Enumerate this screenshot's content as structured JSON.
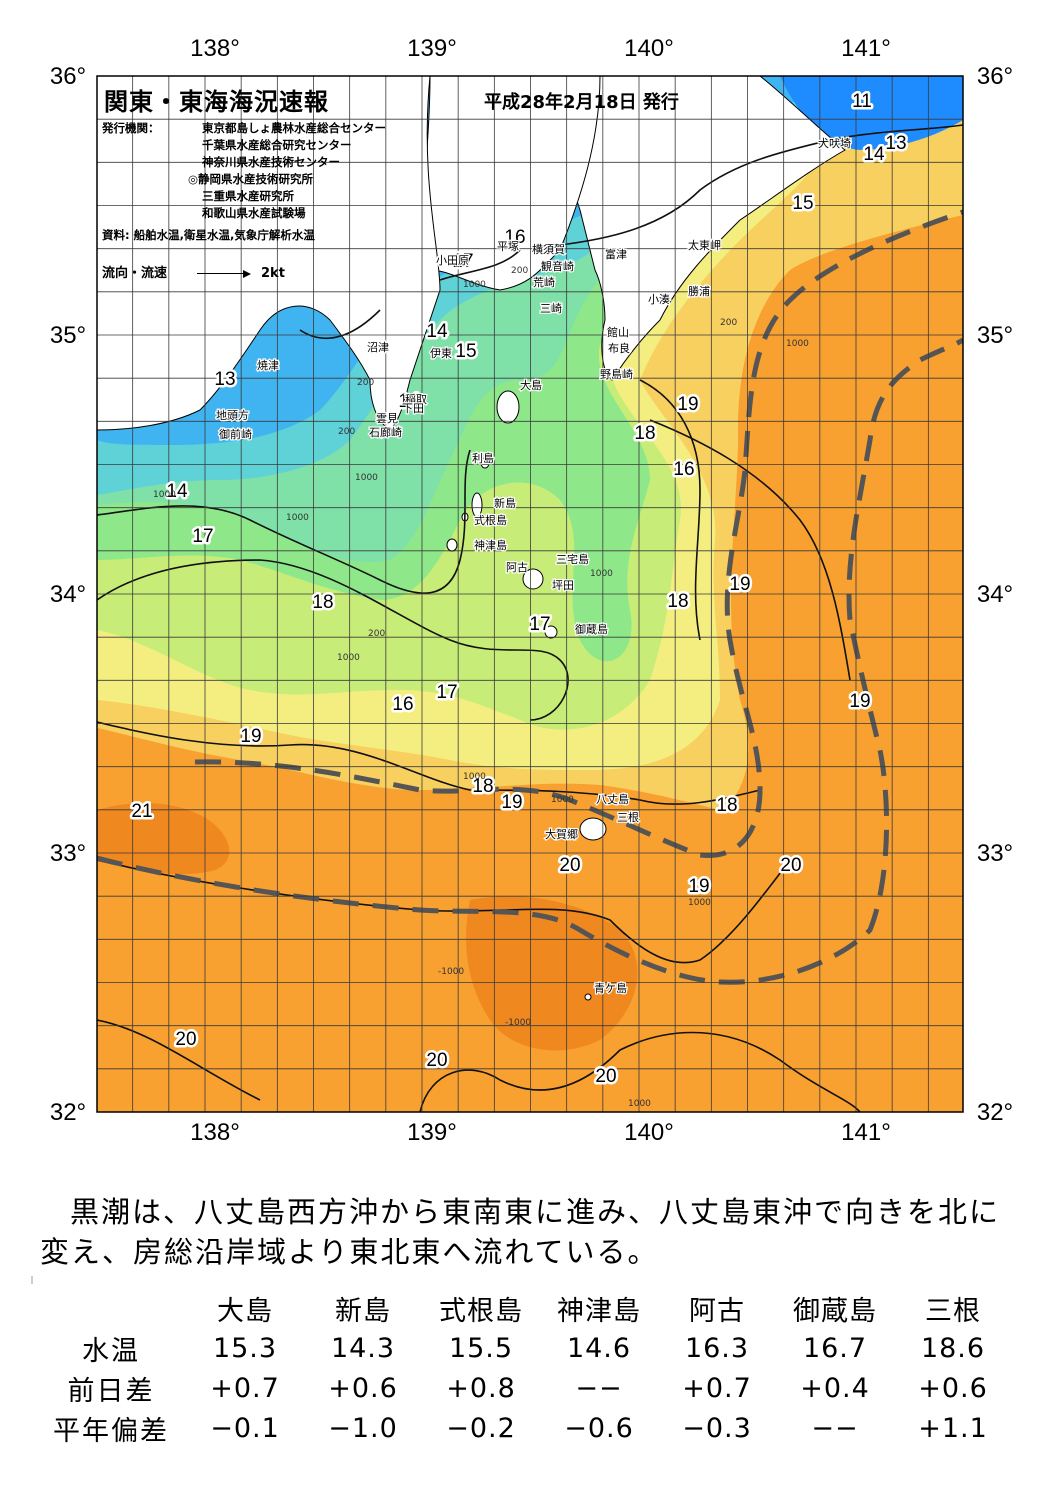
{
  "header": {
    "title": "関東・東海海況速報",
    "date": "平成28年2月18日 発行",
    "publisher_key": "発行機関：",
    "publishers": [
      "東京都島しょ農林水産総合センター",
      "千葉県水産総合研究センター",
      "神奈川県水産技術センター",
      "◎静岡県水産技術研究所",
      "三重県水産研究所",
      "和歌山県水産試験場"
    ],
    "source": "資料: 船舶水温,衛星水温,気象庁解析水温",
    "legend_label": "流向・流速",
    "legend_speed": "2kt"
  },
  "map": {
    "lon_labels": [
      "138°",
      "139°",
      "140°",
      "141°"
    ],
    "lat_labels": [
      "36°",
      "35°",
      "34°",
      "33°",
      "32°"
    ],
    "colors": {
      "t11": "#1e8cff",
      "t13": "#40b4f0",
      "t14": "#5fd2d8",
      "t15": "#7fe0a8",
      "t16": "#8ee88a",
      "t17": "#c8ec78",
      "t18": "#f4ee80",
      "t19": "#f8d060",
      "t20": "#f8a030",
      "t21": "#f08820",
      "land": "#ffffff",
      "kuroshio_path": "#555555"
    },
    "isotherm_labels": [
      {
        "text": "11"
      },
      {
        "text": "13"
      },
      {
        "text": "14"
      },
      {
        "text": "15"
      },
      {
        "text": "16"
      },
      {
        "text": "17"
      },
      {
        "text": "14"
      },
      {
        "text": "15"
      },
      {
        "text": "13"
      },
      {
        "text": "14"
      },
      {
        "text": "19"
      },
      {
        "text": "18"
      },
      {
        "text": "16"
      },
      {
        "text": "14"
      },
      {
        "text": "17"
      },
      {
        "text": "18"
      },
      {
        "text": "17"
      },
      {
        "text": "19"
      },
      {
        "text": "18"
      },
      {
        "text": "16"
      },
      {
        "text": "17"
      },
      {
        "text": "19"
      },
      {
        "text": "19"
      },
      {
        "text": "18"
      },
      {
        "text": "19"
      },
      {
        "text": "21"
      },
      {
        "text": "18"
      },
      {
        "text": "20"
      },
      {
        "text": "19"
      },
      {
        "text": "20"
      },
      {
        "text": "20"
      },
      {
        "text": "20"
      },
      {
        "text": "20"
      },
      {
        "text": "13"
      }
    ],
    "place_names": [
      {
        "text": "犬吠埼"
      },
      {
        "text": "太東岬"
      },
      {
        "text": "勝浦"
      },
      {
        "text": "小湊"
      },
      {
        "text": "富津"
      },
      {
        "text": "館山"
      },
      {
        "text": "布良"
      },
      {
        "text": "野島崎"
      },
      {
        "text": "横須賀"
      },
      {
        "text": "観音崎"
      },
      {
        "text": "荒崎"
      },
      {
        "text": "三崎"
      },
      {
        "text": "平塚"
      },
      {
        "text": "小田原"
      },
      {
        "text": "沼津"
      },
      {
        "text": "伊東"
      },
      {
        "text": "焼津"
      },
      {
        "text": "地頭方"
      },
      {
        "text": "御前崎"
      },
      {
        "text": "稲取"
      },
      {
        "text": "下田"
      },
      {
        "text": "雲見"
      },
      {
        "text": "石廊崎"
      },
      {
        "text": "大島"
      },
      {
        "text": "利島"
      },
      {
        "text": "新島"
      },
      {
        "text": "式根島"
      },
      {
        "text": "神津島"
      },
      {
        "text": "三宅島"
      },
      {
        "text": "阿古"
      },
      {
        "text": "坪田"
      },
      {
        "text": "御蔵島"
      },
      {
        "text": "八丈島"
      },
      {
        "text": "三根"
      },
      {
        "text": "大賀郷"
      },
      {
        "text": "青ケ島"
      }
    ],
    "depth_labels": [
      {
        "text": "200"
      },
      {
        "text": "1000"
      },
      {
        "text": "200"
      },
      {
        "text": "200"
      },
      {
        "text": "1000"
      },
      {
        "text": "200"
      },
      {
        "text": "1000"
      },
      {
        "text": "1000"
      },
      {
        "text": "1000"
      },
      {
        "text": "200"
      },
      {
        "text": "1000"
      },
      {
        "text": "1000"
      },
      {
        "text": "1000"
      },
      {
        "text": "1000"
      },
      {
        "text": "1000"
      },
      {
        "text": "-1000"
      },
      {
        "text": "-1000"
      },
      {
        "text": "1000"
      }
    ]
  },
  "summary": {
    "text": "黒潮は、八丈島西方沖から東南東に進み、八丈島東沖で向きを北に変え、房総沿岸域より東北東へ流れている。"
  },
  "observations": {
    "stations": [
      "大島",
      "新島",
      "式根島",
      "神津島",
      "阿古",
      "御蔵島",
      "三根"
    ],
    "rows": [
      {
        "label": "水温",
        "values": [
          "15.3",
          "14.3",
          "15.5",
          "14.6",
          "16.3",
          "16.7",
          "18.6"
        ]
      },
      {
        "label": "前日差",
        "values": [
          "+0.7",
          "+0.6",
          "+0.8",
          "−−",
          "+0.7",
          "+0.4",
          "+0.6"
        ]
      },
      {
        "label": "平年偏差",
        "values": [
          "−0.1",
          "−1.0",
          "−0.2",
          "−0.6",
          "−0.3",
          "−−",
          "+1.1"
        ]
      }
    ]
  }
}
